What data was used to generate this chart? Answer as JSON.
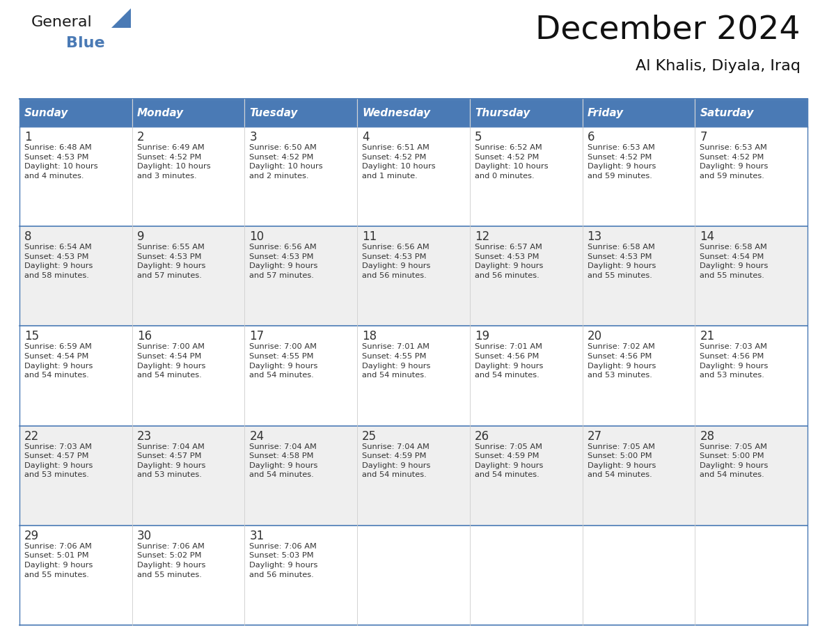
{
  "title": "December 2024",
  "subtitle": "Al Khalis, Diyala, Iraq",
  "header_color": "#4a7ab5",
  "header_text_color": "#FFFFFF",
  "cell_bg_week1": "#FFFFFF",
  "cell_bg_week2": "#EFEFEF",
  "day_number_color": "#333333",
  "text_color": "#333333",
  "border_color": "#4a7ab5",
  "days_of_week": [
    "Sunday",
    "Monday",
    "Tuesday",
    "Wednesday",
    "Thursday",
    "Friday",
    "Saturday"
  ],
  "weeks": [
    [
      {
        "day": "1",
        "sunrise": "6:48 AM",
        "sunset": "4:53 PM",
        "daylight": "10 hours\nand 4 minutes."
      },
      {
        "day": "2",
        "sunrise": "6:49 AM",
        "sunset": "4:52 PM",
        "daylight": "10 hours\nand 3 minutes."
      },
      {
        "day": "3",
        "sunrise": "6:50 AM",
        "sunset": "4:52 PM",
        "daylight": "10 hours\nand 2 minutes."
      },
      {
        "day": "4",
        "sunrise": "6:51 AM",
        "sunset": "4:52 PM",
        "daylight": "10 hours\nand 1 minute."
      },
      {
        "day": "5",
        "sunrise": "6:52 AM",
        "sunset": "4:52 PM",
        "daylight": "10 hours\nand 0 minutes."
      },
      {
        "day": "6",
        "sunrise": "6:53 AM",
        "sunset": "4:52 PM",
        "daylight": "9 hours\nand 59 minutes."
      },
      {
        "day": "7",
        "sunrise": "6:53 AM",
        "sunset": "4:52 PM",
        "daylight": "9 hours\nand 59 minutes."
      }
    ],
    [
      {
        "day": "8",
        "sunrise": "6:54 AM",
        "sunset": "4:53 PM",
        "daylight": "9 hours\nand 58 minutes."
      },
      {
        "day": "9",
        "sunrise": "6:55 AM",
        "sunset": "4:53 PM",
        "daylight": "9 hours\nand 57 minutes."
      },
      {
        "day": "10",
        "sunrise": "6:56 AM",
        "sunset": "4:53 PM",
        "daylight": "9 hours\nand 57 minutes."
      },
      {
        "day": "11",
        "sunrise": "6:56 AM",
        "sunset": "4:53 PM",
        "daylight": "9 hours\nand 56 minutes."
      },
      {
        "day": "12",
        "sunrise": "6:57 AM",
        "sunset": "4:53 PM",
        "daylight": "9 hours\nand 56 minutes."
      },
      {
        "day": "13",
        "sunrise": "6:58 AM",
        "sunset": "4:53 PM",
        "daylight": "9 hours\nand 55 minutes."
      },
      {
        "day": "14",
        "sunrise": "6:58 AM",
        "sunset": "4:54 PM",
        "daylight": "9 hours\nand 55 minutes."
      }
    ],
    [
      {
        "day": "15",
        "sunrise": "6:59 AM",
        "sunset": "4:54 PM",
        "daylight": "9 hours\nand 54 minutes."
      },
      {
        "day": "16",
        "sunrise": "7:00 AM",
        "sunset": "4:54 PM",
        "daylight": "9 hours\nand 54 minutes."
      },
      {
        "day": "17",
        "sunrise": "7:00 AM",
        "sunset": "4:55 PM",
        "daylight": "9 hours\nand 54 minutes."
      },
      {
        "day": "18",
        "sunrise": "7:01 AM",
        "sunset": "4:55 PM",
        "daylight": "9 hours\nand 54 minutes."
      },
      {
        "day": "19",
        "sunrise": "7:01 AM",
        "sunset": "4:56 PM",
        "daylight": "9 hours\nand 54 minutes."
      },
      {
        "day": "20",
        "sunrise": "7:02 AM",
        "sunset": "4:56 PM",
        "daylight": "9 hours\nand 53 minutes."
      },
      {
        "day": "21",
        "sunrise": "7:03 AM",
        "sunset": "4:56 PM",
        "daylight": "9 hours\nand 53 minutes."
      }
    ],
    [
      {
        "day": "22",
        "sunrise": "7:03 AM",
        "sunset": "4:57 PM",
        "daylight": "9 hours\nand 53 minutes."
      },
      {
        "day": "23",
        "sunrise": "7:04 AM",
        "sunset": "4:57 PM",
        "daylight": "9 hours\nand 53 minutes."
      },
      {
        "day": "24",
        "sunrise": "7:04 AM",
        "sunset": "4:58 PM",
        "daylight": "9 hours\nand 54 minutes."
      },
      {
        "day": "25",
        "sunrise": "7:04 AM",
        "sunset": "4:59 PM",
        "daylight": "9 hours\nand 54 minutes."
      },
      {
        "day": "26",
        "sunrise": "7:05 AM",
        "sunset": "4:59 PM",
        "daylight": "9 hours\nand 54 minutes."
      },
      {
        "day": "27",
        "sunrise": "7:05 AM",
        "sunset": "5:00 PM",
        "daylight": "9 hours\nand 54 minutes."
      },
      {
        "day": "28",
        "sunrise": "7:05 AM",
        "sunset": "5:00 PM",
        "daylight": "9 hours\nand 54 minutes."
      }
    ],
    [
      {
        "day": "29",
        "sunrise": "7:06 AM",
        "sunset": "5:01 PM",
        "daylight": "9 hours\nand 55 minutes."
      },
      {
        "day": "30",
        "sunrise": "7:06 AM",
        "sunset": "5:02 PM",
        "daylight": "9 hours\nand 55 minutes."
      },
      {
        "day": "31",
        "sunrise": "7:06 AM",
        "sunset": "5:03 PM",
        "daylight": "9 hours\nand 56 minutes."
      },
      null,
      null,
      null,
      null
    ]
  ],
  "logo_text_general": "General",
  "logo_text_blue": "Blue",
  "logo_color_general": "#1a1a1a",
  "logo_color_blue": "#4a7ab5",
  "logo_triangle_color": "#4a7ab5",
  "fig_width": 11.88,
  "fig_height": 9.18,
  "dpi": 100
}
